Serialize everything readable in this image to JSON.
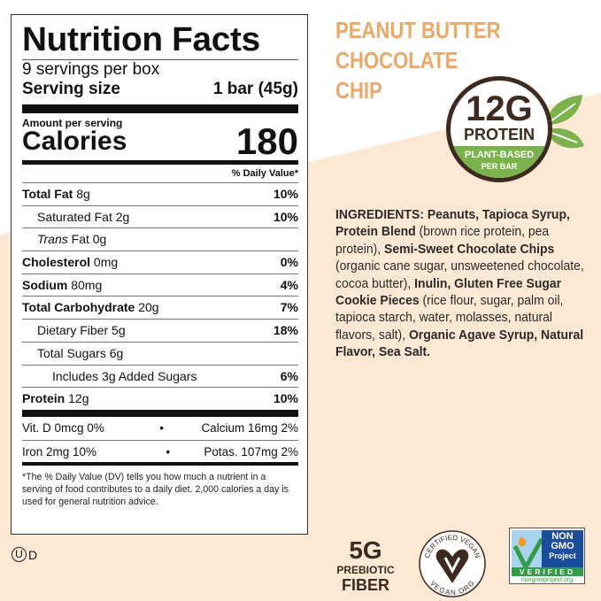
{
  "nutrition": {
    "title": "Nutrition Facts",
    "servings": "9 servings per box",
    "serving_size_label": "Serving size",
    "serving_size_value": "1 bar (45g)",
    "amount_per_serving": "Amount per serving",
    "calories_label": "Calories",
    "calories_value": "180",
    "dv_header": "% Daily Value*",
    "rows": [
      {
        "label": "Total Fat",
        "amount": "8g",
        "dv": "10%"
      },
      {
        "label": "Saturated Fat",
        "amount": "2g",
        "dv": "10%"
      },
      {
        "label": "Trans",
        "label2": "Fat",
        "amount": "0g",
        "dv": ""
      },
      {
        "label": "Cholesterol",
        "amount": "0mg",
        "dv": "0%"
      },
      {
        "label": "Sodium",
        "amount": "80mg",
        "dv": "4%"
      },
      {
        "label": "Total Carbohydrate",
        "amount": "20g",
        "dv": "7%"
      },
      {
        "label": "Dietary Fiber",
        "amount": "5g",
        "dv": "18%"
      },
      {
        "label": "Total Sugars",
        "amount": "6g",
        "dv": ""
      },
      {
        "label": "Includes 3g Added Sugars",
        "amount": "",
        "dv": "6%"
      },
      {
        "label": "Protein",
        "amount": "12g",
        "dv": "10%"
      }
    ],
    "vitamins": [
      {
        "left": "Vit. D 0mcg 0%",
        "right": "Calcium 16mg 2%"
      },
      {
        "left": "Iron 2mg 10%",
        "right": "Potas. 107mg 2%"
      }
    ],
    "bullet": "•",
    "footnote": "*The % Daily Value (DV) tells you how much a nutrient in a serving of food contributes to a daily diet. 2,000 calories a day is used for general nutrition advice."
  },
  "kosher": {
    "symbol": "U",
    "suffix": "D"
  },
  "flavor": [
    "PEANUT BUTTER",
    "CHOCOLATE",
    "CHIP"
  ],
  "protein_badge": {
    "amount": "12G",
    "label": "PROTEIN",
    "sub1": "PLANT-BASED",
    "sub2": "PER BAR"
  },
  "ingredients": {
    "label": "INGREDIENTS:",
    "parts": [
      {
        "b": "Peanuts, Tapioca Syrup, Protein Blend"
      },
      {
        "t": " (brown rice protein, pea protein), "
      },
      {
        "b": "Semi-Sweet Chocolate Chips"
      },
      {
        "t": " (organic cane sugar, unsweetened chocolate, cocoa butter), "
      },
      {
        "b": "Inulin, Gluten Free Sugar Cookie Pieces"
      },
      {
        "t": " (rice flour, sugar, palm oil, tapioca starch, water, molasses, natural flavors, salt), "
      },
      {
        "b": "Organic Agave Syrup, Natural Flavor, Sea Salt."
      }
    ]
  },
  "fiber_badge": {
    "amount": "5G",
    "line1": "PREBIOTIC",
    "line2": "FIBER"
  },
  "vegan_seal": {
    "top": "CERTIFIED VEGAN",
    "bottom": "VEGAN.ORG"
  },
  "nongmo_seal": {
    "line1": "NON",
    "line2": "GMO",
    "line3": "Project",
    "verified": "VERIFIED",
    "url": "nongmoproject.org"
  },
  "colors": {
    "peach": "#fde8d3",
    "flavor": "#eca867",
    "brown": "#3d2a20",
    "green": "#79b34a",
    "ngmo_blue": "#1a4d9c"
  }
}
